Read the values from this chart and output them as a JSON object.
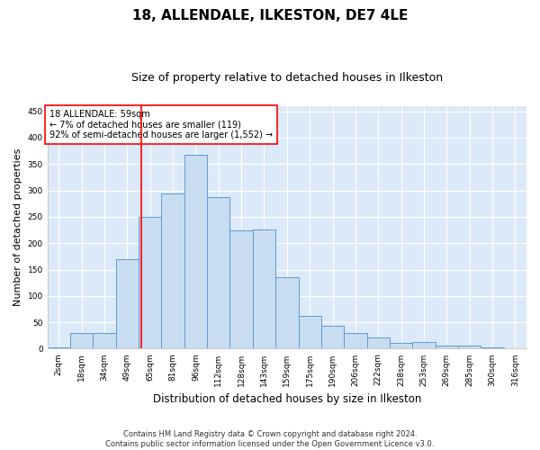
{
  "title1": "18, ALLENDALE, ILKESTON, DE7 4LE",
  "title2": "Size of property relative to detached houses in Ilkeston",
  "xlabel": "Distribution of detached houses by size in Ilkeston",
  "ylabel": "Number of detached properties",
  "footer1": "Contains HM Land Registry data © Crown copyright and database right 2024.",
  "footer2": "Contains public sector information licensed under the Open Government Licence v3.0.",
  "annotation_line1": "18 ALLENDALE: 59sqm",
  "annotation_line2": "← 7% of detached houses are smaller (119)",
  "annotation_line3": "92% of semi-detached houses are larger (1,552) →",
  "bar_heights": [
    3,
    30,
    30,
    170,
    250,
    295,
    367,
    287,
    225,
    226,
    135,
    62,
    44,
    30,
    22,
    11,
    13,
    6,
    5,
    2,
    1
  ],
  "bar_edge_color": "#5b9bd5",
  "bar_fill_color": "#c9ddf0",
  "marker_color": "red",
  "ylim": [
    0,
    460
  ],
  "yticks": [
    0,
    50,
    100,
    150,
    200,
    250,
    300,
    350,
    400,
    450
  ],
  "bg_color": "#dce9f8",
  "grid_color": "#ffffff",
  "title1_fontsize": 11,
  "title2_fontsize": 9,
  "xlabel_fontsize": 8.5,
  "ylabel_fontsize": 8,
  "annot_fontsize": 7,
  "footer_fontsize": 6,
  "tick_fontsize": 6.5,
  "tick_labels": [
    "2sqm",
    "18sqm",
    "34sqm",
    "49sqm",
    "65sqm",
    "81sqm",
    "96sqm",
    "112sqm",
    "128sqm",
    "143sqm",
    "159sqm",
    "175sqm",
    "190sqm",
    "206sqm",
    "222sqm",
    "238sqm",
    "253sqm",
    "269sqm",
    "285sqm",
    "300sqm",
    "316sqm"
  ],
  "marker_bin": 3.62
}
